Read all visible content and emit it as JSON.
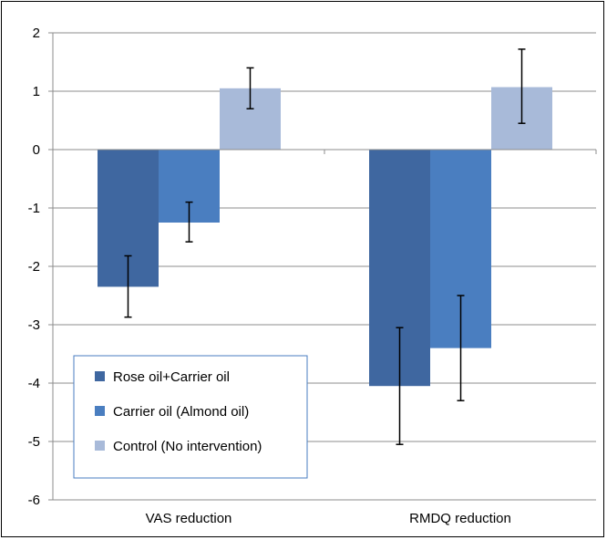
{
  "chart_data": {
    "type": "bar",
    "categories": [
      "VAS reduction",
      "RMDQ reduction"
    ],
    "series": [
      {
        "name": "Rose oil+Carrier oil",
        "color": "#3F67A0",
        "values": [
          -2.35,
          -4.05
        ],
        "error_low": [
          -2.87,
          -5.05
        ],
        "error_high": [
          -1.82,
          -3.05
        ]
      },
      {
        "name": "Carrier oil (Almond oil)",
        "color": "#4A7EC0",
        "values": [
          -1.25,
          -3.4
        ],
        "error_low": [
          -1.58,
          -4.3
        ],
        "error_high": [
          -0.9,
          -2.5
        ]
      },
      {
        "name": "Control (No intervention)",
        "color": "#A8BAD9",
        "values": [
          1.05,
          1.07
        ],
        "error_low": [
          0.7,
          0.45
        ],
        "error_high": [
          1.4,
          1.72
        ]
      }
    ],
    "ylim": [
      -6,
      2
    ],
    "yticks": [
      "2",
      "1",
      "0",
      "-1",
      "-2",
      "-3",
      "-4",
      "-5",
      "-6"
    ],
    "grid": true,
    "legend_position": "bottom-left"
  }
}
